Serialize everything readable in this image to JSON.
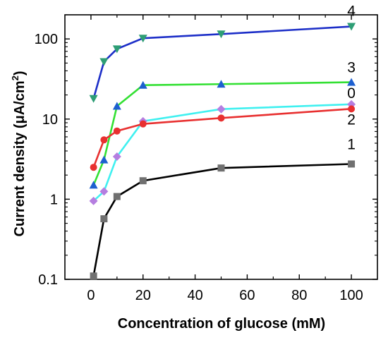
{
  "chart_data": {
    "type": "line",
    "xlabel": "Concentration of glucose (mM)",
    "ylabel_main": "Current density (μA/cm",
    "ylabel_sup": "2",
    "ylabel_close": ")",
    "yscale": "log",
    "xlim": [
      -10,
      110
    ],
    "ylim": [
      0.1,
      200
    ],
    "x_ticks": [
      0,
      20,
      40,
      60,
      80,
      100
    ],
    "y_ticks": [
      {
        "value": 0.1,
        "label": "0.1"
      },
      {
        "value": 1,
        "label": "1"
      },
      {
        "value": 10,
        "label": "10"
      },
      {
        "value": 100,
        "label": "100"
      }
    ],
    "x": [
      1,
      5,
      10,
      20,
      50,
      100
    ],
    "series": [
      {
        "name": "4",
        "color": "#1d2fc8",
        "marker": "triangle-down",
        "marker_color": "#2e9e75",
        "values": [
          18,
          52,
          75,
          102,
          115,
          143
        ]
      },
      {
        "name": "3",
        "color": "#33e033",
        "marker": "triangle-up",
        "marker_color": "#1d5fd0",
        "values": [
          1.5,
          3.1,
          14.5,
          26.5,
          27.3,
          28.8
        ]
      },
      {
        "name": "0",
        "color": "#40f0f0",
        "marker": "diamond",
        "marker_color": "#b57ee0",
        "values": [
          0.95,
          1.25,
          3.4,
          9.4,
          13.3,
          15.3
        ]
      },
      {
        "name": "2",
        "color": "#e83030",
        "marker": "circle",
        "marker_color": "#e83030",
        "values": [
          2.5,
          5.5,
          7.1,
          8.7,
          10.3,
          13.4
        ]
      },
      {
        "name": "1",
        "color": "#000000",
        "marker": "square",
        "marker_color": "#707070",
        "values": [
          0.11,
          0.57,
          1.08,
          1.7,
          2.45,
          2.75
        ]
      }
    ]
  }
}
